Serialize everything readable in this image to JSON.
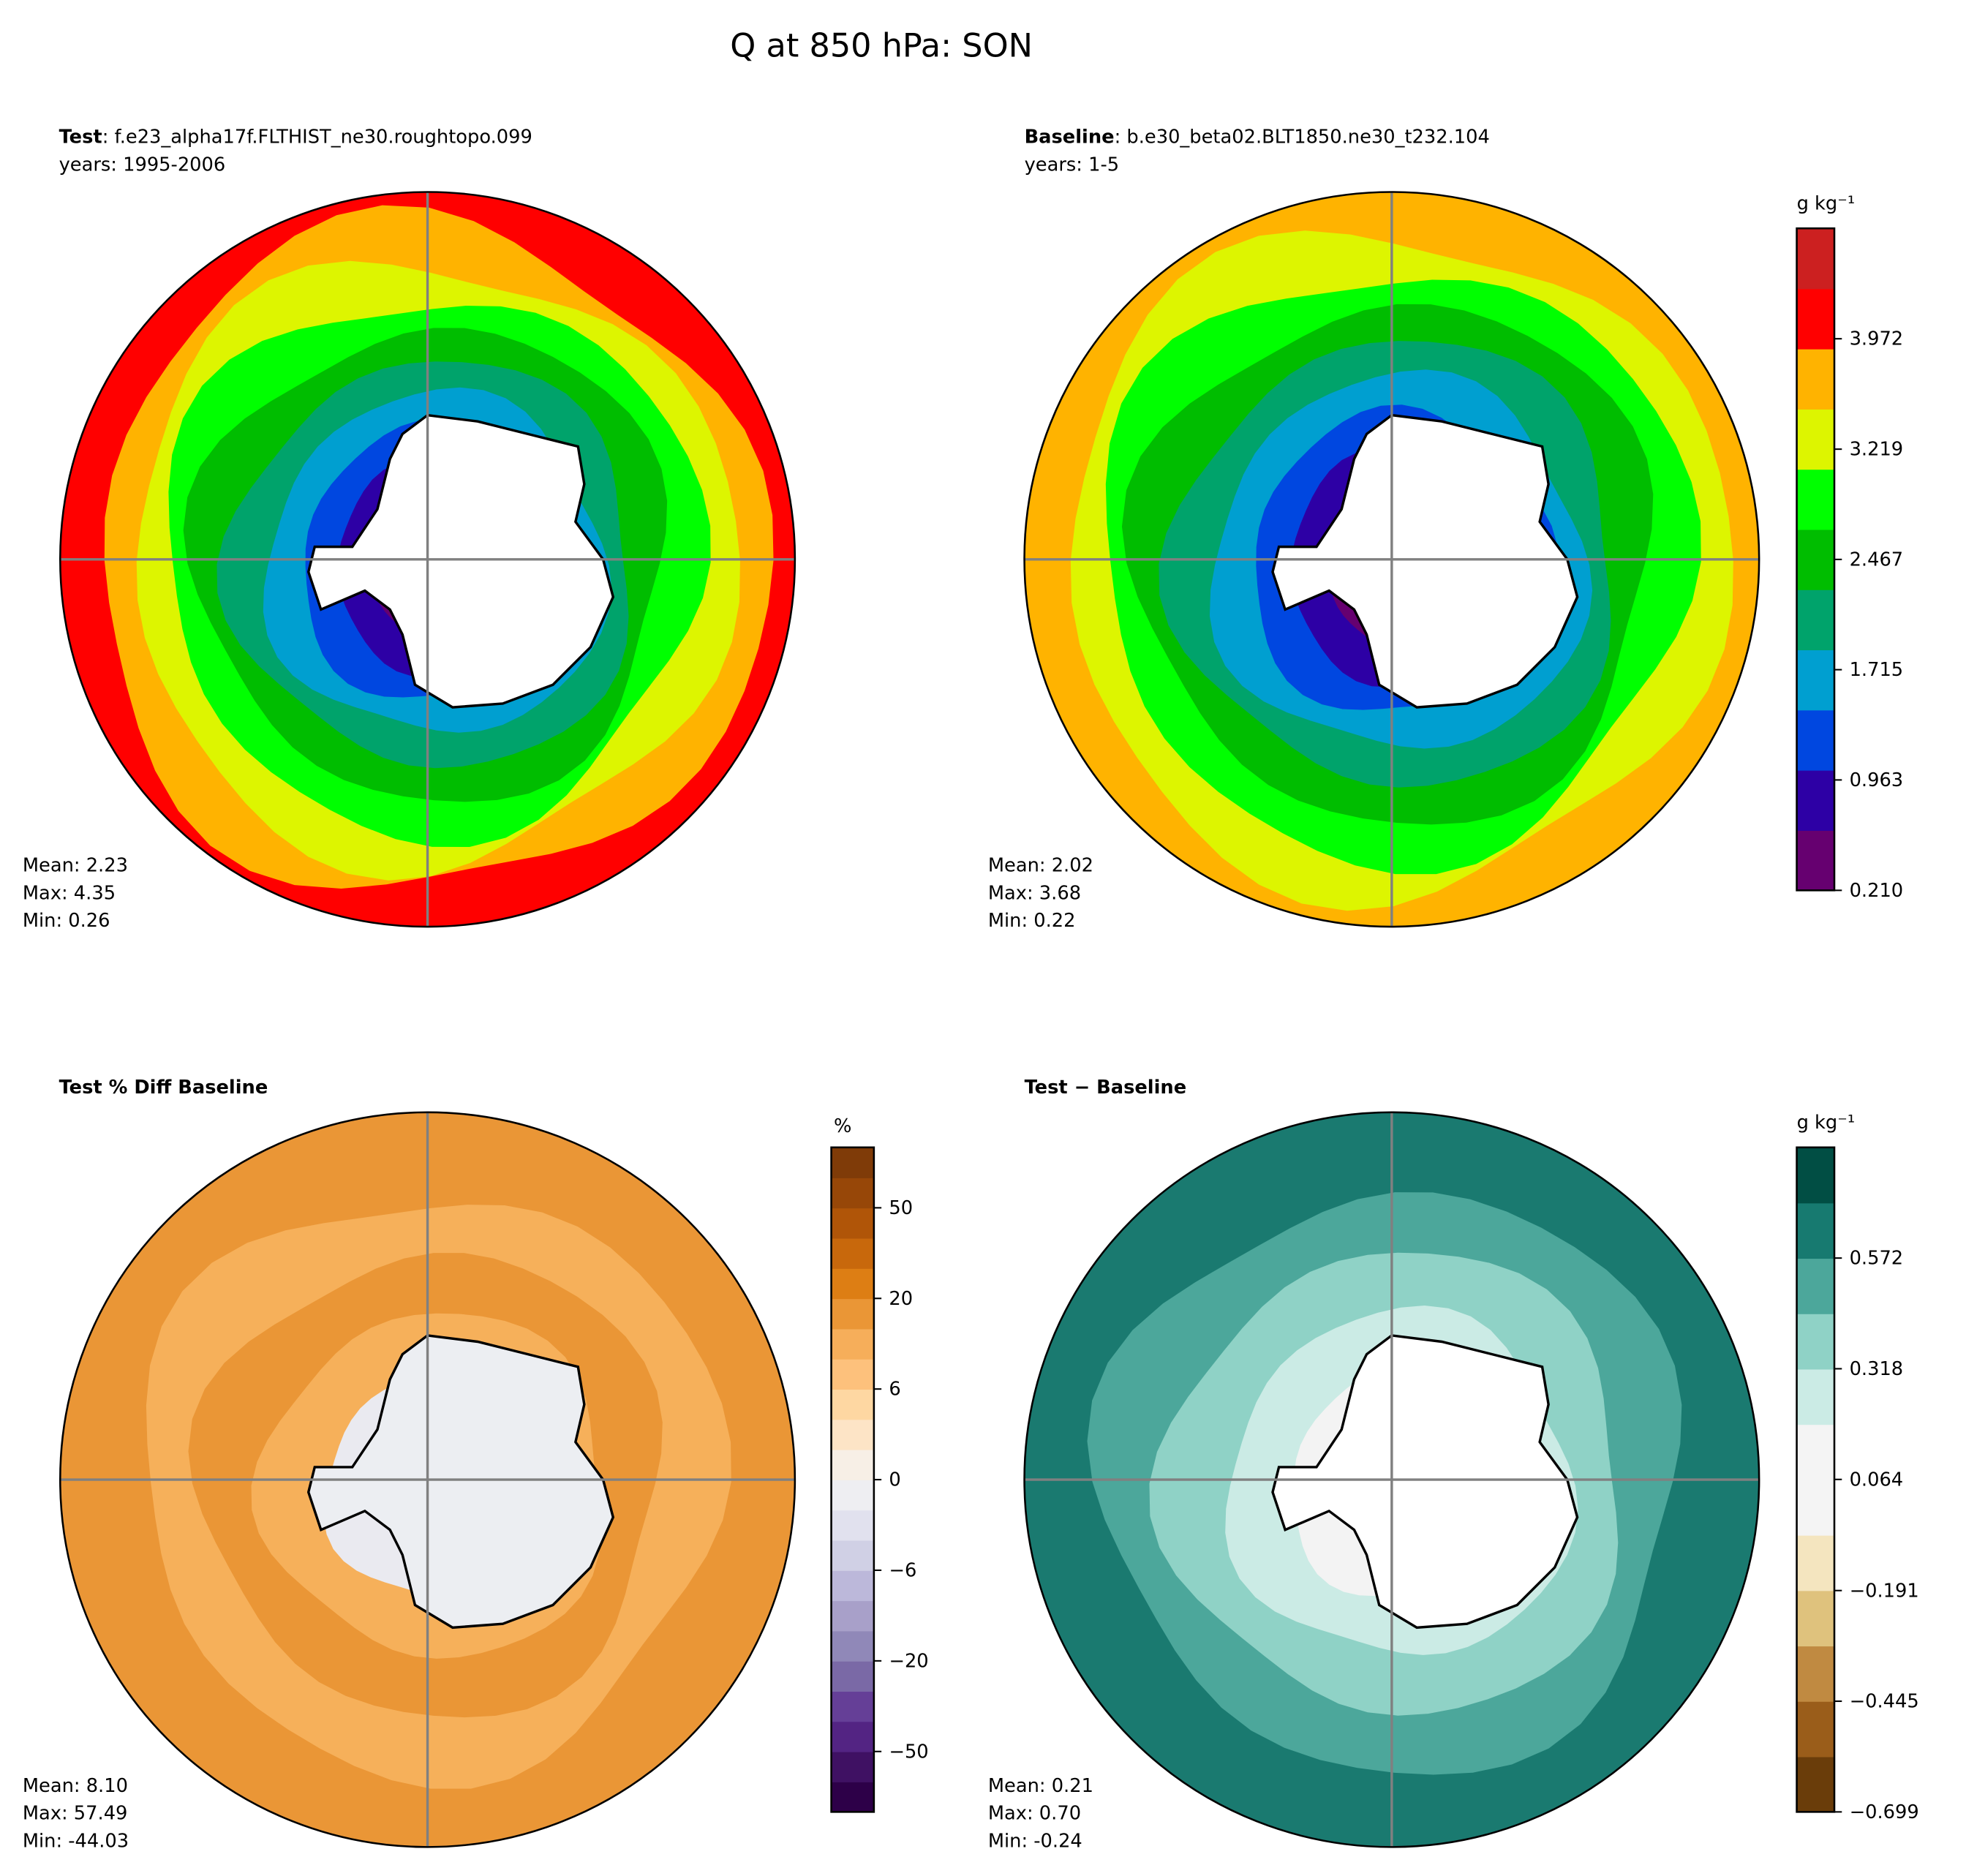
{
  "title": "Q at 850 hPa: SON",
  "chart_data": [
    {
      "type": "heatmap",
      "projection": "south-polar-stereographic",
      "title_bold": "Test",
      "title_rest": ": f.e23_alpha17f.FLTHIST_ne30.roughtopo.099",
      "subtitle": "years: 1995-2006",
      "stats": {
        "mean": "Mean:  2.23",
        "max": "Max:  4.35",
        "min": "Min:  0.26"
      },
      "levels_note": "shares colorbar with Baseline",
      "ring_colors": [
        "#ff0000",
        "#ffb300",
        "#ddf500",
        "#00ff00",
        "#00bd00",
        "#00a36b",
        "#009fd0",
        "#0047e0",
        "#2d00a5",
        "#660070"
      ]
    },
    {
      "type": "heatmap",
      "projection": "south-polar-stereographic",
      "title_bold": "Baseline",
      "title_rest": ": b.e30_beta02.BLT1850.ne30_t232.104",
      "subtitle": "years: 1-5",
      "stats": {
        "mean": "Mean:  2.02",
        "max": "Max:  3.68",
        "min": "Min:  0.22"
      },
      "ring_colors": [
        "#ffb300",
        "#ddf500",
        "#00ff00",
        "#00bd00",
        "#00a36b",
        "#009fd0",
        "#0047e0",
        "#2d00a5",
        "#660070"
      ],
      "colorbar": {
        "label": "g kg⁻¹",
        "range": [
          0.21,
          4.725
        ],
        "colors": [
          "#660070",
          "#2d00a5",
          "#0047e0",
          "#009fd0",
          "#00a36b",
          "#00bd00",
          "#00ff00",
          "#ddf500",
          "#ffb300",
          "#ff0000",
          "#cc2020"
        ],
        "bins": 12,
        "ticks": [
          0.21,
          0.963,
          1.715,
          2.467,
          3.219,
          3.972
        ],
        "tick_labels": [
          "0.210",
          "0.963",
          "1.715",
          "2.467",
          "3.219",
          "3.972"
        ]
      }
    },
    {
      "type": "heatmap",
      "projection": "south-polar-stereographic",
      "title_bold": "Test % Diff Baseline",
      "stats": {
        "mean": "Mean:  8.10",
        "max": "Max: 57.49",
        "min": "Min: -44.03"
      },
      "ring_colors": [
        "#ea9636",
        "#f6b05a",
        "#ea9636",
        "#f6b05a",
        "#eaeaf0"
      ],
      "colorbar": {
        "label": "%",
        "colors": [
          "#2d0048",
          "#3f1163",
          "#532483",
          "#653f97",
          "#7a69a6",
          "#9088b8",
          "#a8a0c9",
          "#bcb8da",
          "#d0d0e5",
          "#e1e1ee",
          "#eeeef2",
          "#f7efe6",
          "#fde4c6",
          "#fed7a2",
          "#fdc17c",
          "#f6ae5a",
          "#ea9636",
          "#dd7e14",
          "#c8680c",
          "#b05508",
          "#974708",
          "#7f3b08"
        ],
        "tick_labels": [
          "−50",
          "−20",
          "−6",
          "0",
          "6",
          "20",
          "50"
        ],
        "tick_bin_index": [
          2,
          5,
          8,
          11,
          14,
          17,
          20
        ]
      }
    },
    {
      "type": "heatmap",
      "projection": "south-polar-stereographic",
      "title_bold": "Test − Baseline",
      "stats": {
        "mean": "Mean:  0.21",
        "max": "Max:  0.70",
        "min": "Min: -0.24"
      },
      "ring_colors": [
        "#1a7a70",
        "#4ca79b",
        "#8fd2c6",
        "#cbebe5",
        "#f3f3f3"
      ],
      "colorbar": {
        "label": "g kg⁻¹",
        "range": [
          -0.699,
          0.826
        ],
        "colors": [
          "#6a3d0a",
          "#9a5d1a",
          "#c08a41",
          "#dfc27d",
          "#f4e5bf",
          "#f4f4f4",
          "#f4f4f4",
          "#cbebe5",
          "#8fd2c6",
          "#4ca79b",
          "#177a70",
          "#014e44"
        ],
        "ticks": [
          -0.699,
          -0.445,
          -0.191,
          0.064,
          0.318,
          0.572
        ],
        "tick_labels": [
          "−0.699",
          "−0.445",
          "−0.191",
          "0.064",
          "0.318",
          "0.572"
        ]
      }
    }
  ]
}
